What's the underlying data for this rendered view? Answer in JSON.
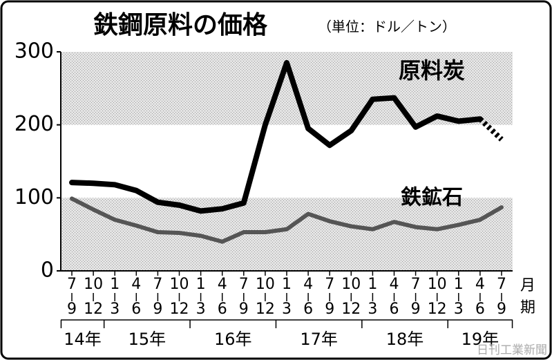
{
  "chart_data": {
    "type": "line",
    "title": "鉄鋼原料の価格",
    "subtitle": "（単位：ドル／トン）",
    "categories": [
      [
        "7",
        "9"
      ],
      [
        "10",
        "12"
      ],
      [
        "1",
        "3"
      ],
      [
        "4",
        "6"
      ],
      [
        "7",
        "9"
      ],
      [
        "10",
        "12"
      ],
      [
        "1",
        "3"
      ],
      [
        "4",
        "6"
      ],
      [
        "7",
        "9"
      ],
      [
        "10",
        "12"
      ],
      [
        "1",
        "3"
      ],
      [
        "4",
        "6"
      ],
      [
        "7",
        "9"
      ],
      [
        "10",
        "12"
      ],
      [
        "1",
        "3"
      ],
      [
        "4",
        "6"
      ],
      [
        "7",
        "9"
      ],
      [
        "10",
        "12"
      ],
      [
        "1",
        "3"
      ],
      [
        "4",
        "6"
      ],
      [
        "7",
        "9"
      ]
    ],
    "x_unit": [
      "月",
      "期"
    ],
    "year_groups": [
      {
        "label": "14年",
        "start": 0,
        "end": 1
      },
      {
        "label": "15年",
        "start": 2,
        "end": 5
      },
      {
        "label": "16年",
        "start": 6,
        "end": 9
      },
      {
        "label": "17年",
        "start": 10,
        "end": 13
      },
      {
        "label": "18年",
        "start": 14,
        "end": 17
      },
      {
        "label": "19年",
        "start": 18,
        "end": 20
      }
    ],
    "series": [
      {
        "name": "原料炭",
        "color": "#000000",
        "dashed_last_segment": true,
        "values": [
          121,
          120,
          118,
          110,
          94,
          90,
          82,
          85,
          93,
          200,
          285,
          195,
          172,
          192,
          235,
          237,
          197,
          212,
          205,
          208,
          180
        ]
      },
      {
        "name": "鉄鉱石",
        "color": "#555555",
        "dashed_last_segment": false,
        "values": [
          99,
          84,
          70,
          62,
          53,
          52,
          48,
          40,
          53,
          53,
          57,
          78,
          68,
          61,
          57,
          67,
          60,
          57,
          63,
          70,
          87
        ]
      }
    ],
    "ylim": [
      0,
      300
    ],
    "yticks": [
      0,
      100,
      200,
      300
    ],
    "credit": "日刊工業新聞"
  }
}
